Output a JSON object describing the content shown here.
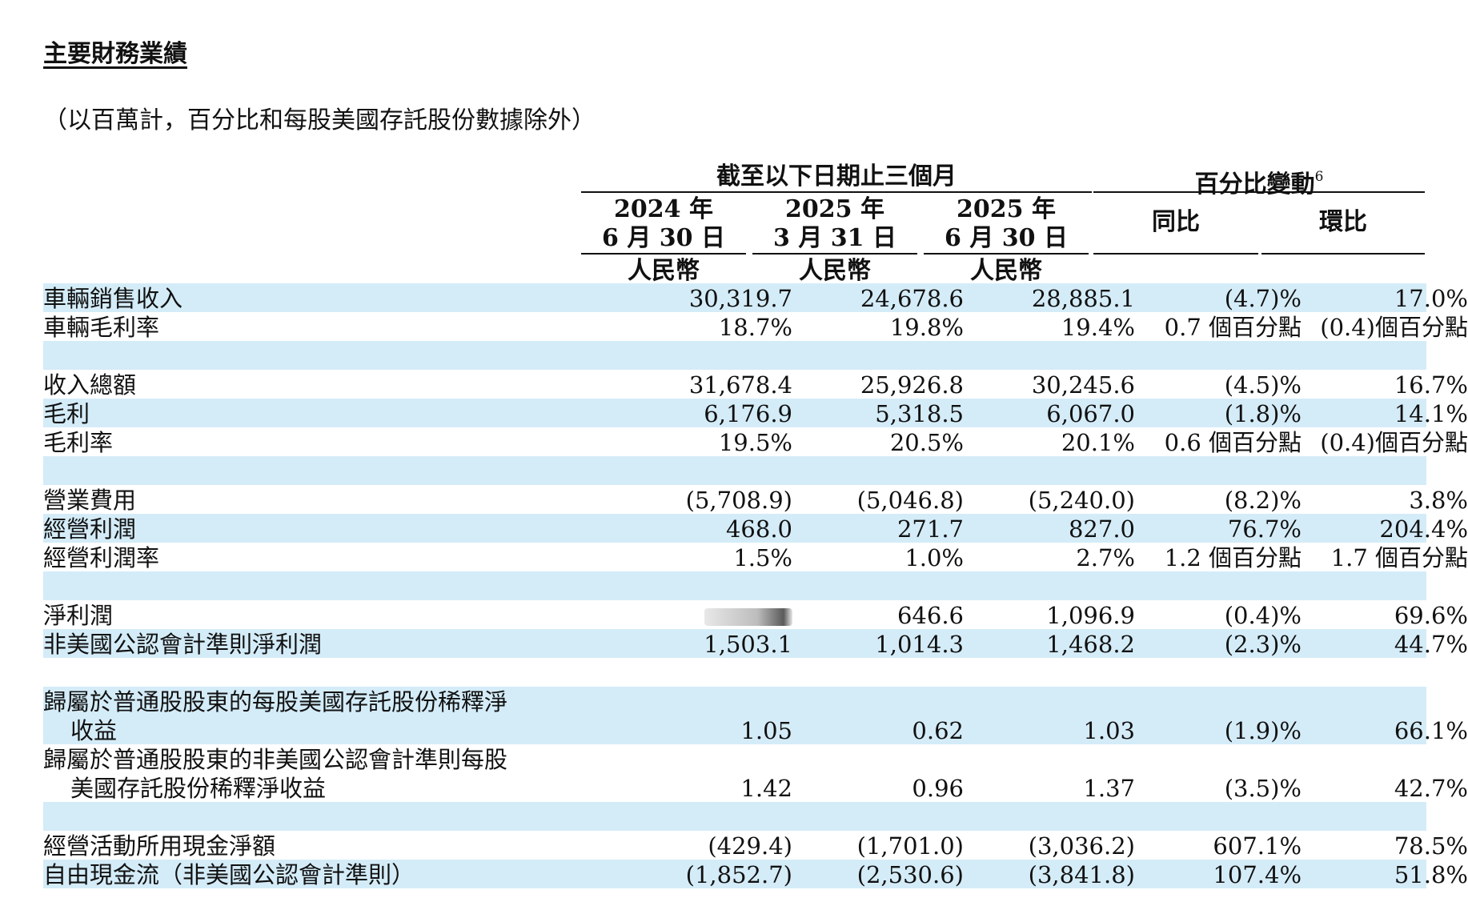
{
  "title": "主要財務業績",
  "subtitle": "（以百萬計，百分比和每股美國存託股份數據除外）",
  "header": {
    "period_group": "截至以下日期止三個月",
    "pct_group": "百分比變動",
    "pct_footnote": "6",
    "periods": [
      {
        "year": "2024 年",
        "date": "6 月 30 日",
        "currency": "人民幣"
      },
      {
        "year": "2025 年",
        "date": "3 月 31 日",
        "currency": "人民幣"
      },
      {
        "year": "2025 年",
        "date": "6 月 30 日",
        "currency": "人民幣"
      }
    ],
    "yoy": "同比",
    "qoq": "環比"
  },
  "rows": {
    "r0": {
      "label": "車輛銷售收入",
      "v1": "30,319.7",
      "v2": "24,678.6",
      "v3": "28,885.1",
      "yoy": "(4.7)%",
      "qoq": "17.0%"
    },
    "r1": {
      "label": "車輛毛利率",
      "v1": "18.7%",
      "v2": "19.8%",
      "v3": "19.4%",
      "yoy": "0.7 個百分點",
      "qoq": "(0.4)個百分點"
    },
    "r2": {
      "label": "收入總額",
      "v1": "31,678.4",
      "v2": "25,926.8",
      "v3": "30,245.6",
      "yoy": "(4.5)%",
      "qoq": "16.7%"
    },
    "r3": {
      "label": "毛利",
      "v1": "6,176.9",
      "v2": "5,318.5",
      "v3": "6,067.0",
      "yoy": "(1.8)%",
      "qoq": "14.1%"
    },
    "r4": {
      "label": "毛利率",
      "v1": "19.5%",
      "v2": "20.5%",
      "v3": "20.1%",
      "yoy": "0.6 個百分點",
      "qoq": "(0.4)個百分點"
    },
    "r5": {
      "label": "營業費用",
      "v1": "(5,708.9)",
      "v2": "(5,046.8)",
      "v3": "(5,240.0)",
      "yoy": "(8.2)%",
      "qoq": "3.8%"
    },
    "r6": {
      "label": "經營利潤",
      "v1": "468.0",
      "v2": "271.7",
      "v3": "827.0",
      "yoy": "76.7%",
      "qoq": "204.4%"
    },
    "r7": {
      "label": "經營利潤率",
      "v1": "1.5%",
      "v2": "1.0%",
      "v3": "2.7%",
      "yoy": "1.2 個百分點",
      "qoq": "1.7 個百分點"
    },
    "r8": {
      "label": "淨利潤",
      "v2": "646.6",
      "v3": "1,096.9",
      "yoy": "(0.4)%",
      "qoq": "69.6%"
    },
    "r9": {
      "label": "非美國公認會計準則淨利潤",
      "v1": "1,503.1",
      "v2": "1,014.3",
      "v3": "1,468.2",
      "yoy": "(2.3)%",
      "qoq": "44.7%"
    },
    "r10": {
      "label": "歸屬於普通股股東的每股美國存託股份稀釋淨",
      "label2": "收益",
      "v1": "1.05",
      "v2": "0.62",
      "v3": "1.03",
      "yoy": "(1.9)%",
      "qoq": "66.1%"
    },
    "r11": {
      "label": "歸屬於普通股股東的非美國公認會計準則每股",
      "label2": "美國存託股份稀釋淨收益",
      "v1": "1.42",
      "v2": "0.96",
      "v3": "1.37",
      "yoy": "(3.5)%",
      "qoq": "42.7%"
    },
    "r12": {
      "label": "經營活動所用現金淨額",
      "v1": "(429.4)",
      "v2": "(1,701.0)",
      "v3": "(3,036.2)",
      "yoy": "607.1%",
      "qoq": "78.5%"
    },
    "r13": {
      "label": "自由現金流（非美國公認會計準則）",
      "v1": "(1,852.7)",
      "v2": "(2,530.6)",
      "v3": "(3,841.8)",
      "yoy": "107.4%",
      "qoq": "51.8%"
    }
  }
}
